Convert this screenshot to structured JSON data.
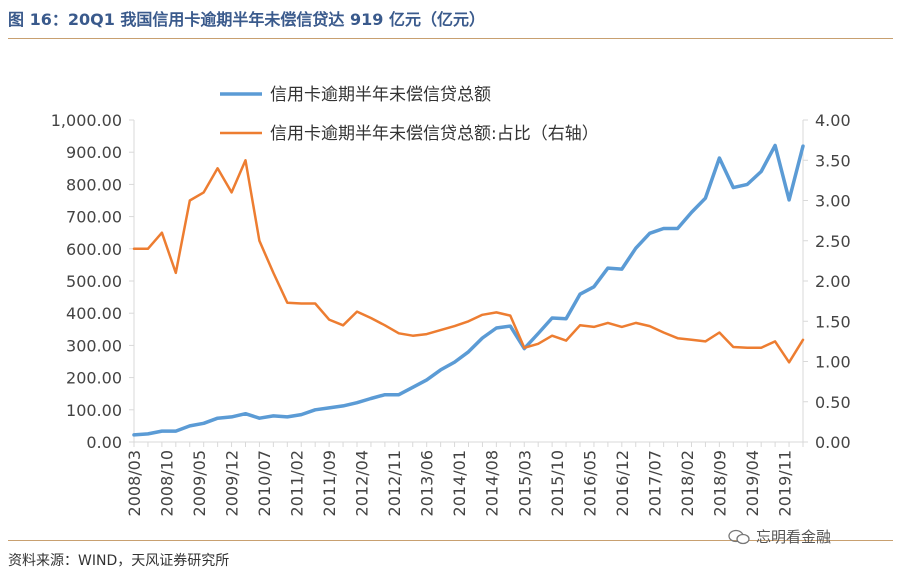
{
  "title": "图 16：20Q1 我国信用卡逾期半年未偿信贷达 919 亿元（亿元）",
  "source": "资料来源：WIND，天风证券研究所",
  "watermark": "忘明看金融",
  "chart_data": {
    "type": "line",
    "x": [
      "2008/03",
      "2008/06",
      "2008/09",
      "2008/12",
      "2009/03",
      "2009/06",
      "2009/09",
      "2009/12",
      "2010/03",
      "2010/06",
      "2010/09",
      "2010/12",
      "2011/03",
      "2011/06",
      "2011/09",
      "2011/12",
      "2012/03",
      "2012/06",
      "2012/09",
      "2012/12",
      "2013/03",
      "2013/06",
      "2013/09",
      "2013/12",
      "2014/03",
      "2014/06",
      "2014/09",
      "2014/12",
      "2015/03",
      "2015/06",
      "2015/09",
      "2015/12",
      "2016/03",
      "2016/06",
      "2016/09",
      "2016/12",
      "2017/03",
      "2017/06",
      "2017/09",
      "2017/12",
      "2018/03",
      "2018/06",
      "2018/09",
      "2018/12",
      "2019/03",
      "2019/06",
      "2019/09",
      "2019/12",
      "2020/03"
    ],
    "xticks": [
      "2008/03",
      "2008/10",
      "2009/05",
      "2009/12",
      "2010/07",
      "2011/02",
      "2011/09",
      "2012/04",
      "2012/11",
      "2013/06",
      "2014/01",
      "2014/08",
      "2015/03",
      "2015/10",
      "2016/05",
      "2016/12",
      "2017/07",
      "2018/02",
      "2018/09",
      "2019/04",
      "2019/11"
    ],
    "series": [
      {
        "name": "信用卡逾期半年未偿信贷总额",
        "axis": "left",
        "color": "#5b9bd5",
        "values": [
          22,
          25,
          34,
          34,
          50,
          58,
          74,
          78,
          88,
          74,
          81,
          78,
          85,
          100,
          106,
          112,
          122,
          135,
          147,
          147,
          170,
          193,
          224,
          248,
          280,
          323,
          354,
          360,
          290,
          337,
          385,
          383,
          459,
          482,
          540,
          537,
          602,
          648,
          663,
          663,
          713,
          757,
          882,
          790,
          800,
          840,
          921,
          752,
          919
        ]
      },
      {
        "name": "信用卡逾期半年未偿信贷总额:占比（右轴）",
        "axis": "right",
        "color": "#ed7d31",
        "values": [
          2.4,
          2.4,
          2.6,
          2.1,
          3.0,
          3.1,
          3.4,
          3.1,
          3.5,
          2.5,
          2.1,
          1.73,
          1.72,
          1.72,
          1.52,
          1.45,
          1.62,
          1.54,
          1.45,
          1.35,
          1.32,
          1.34,
          1.39,
          1.44,
          1.5,
          1.58,
          1.61,
          1.57,
          1.17,
          1.22,
          1.32,
          1.26,
          1.45,
          1.43,
          1.48,
          1.43,
          1.48,
          1.44,
          1.36,
          1.29,
          1.27,
          1.25,
          1.36,
          1.18,
          1.17,
          1.17,
          1.25,
          0.99,
          1.27
        ]
      }
    ],
    "yleft": {
      "min": 0,
      "max": 1000,
      "ticks": [
        "0.00",
        "100.00",
        "200.00",
        "300.00",
        "400.00",
        "500.00",
        "600.00",
        "700.00",
        "800.00",
        "900.00",
        "1,000.00"
      ]
    },
    "yright": {
      "min": 0,
      "max": 4,
      "ticks": [
        "0.00",
        "0.50",
        "1.00",
        "1.50",
        "2.00",
        "2.50",
        "3.00",
        "3.50",
        "4.00"
      ]
    },
    "legend": "top-center",
    "grid": false
  }
}
